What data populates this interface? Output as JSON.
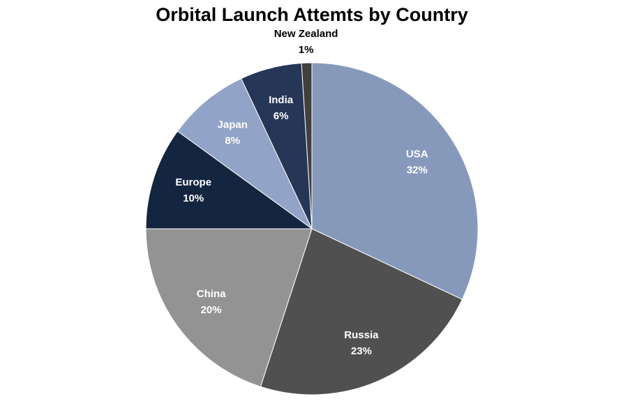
{
  "chart_data": {
    "type": "pie",
    "title": "Orbital Launch Attemts by Country",
    "categories": [
      "USA",
      "Russia",
      "China",
      "Europe",
      "Japan",
      "India",
      "New Zealand"
    ],
    "values": [
      32,
      23,
      20,
      10,
      8,
      6,
      1
    ],
    "value_labels": [
      "32%",
      "23%",
      "20%",
      "10%",
      "8%",
      "6%",
      "1%"
    ],
    "colors": [
      "#8799bb",
      "#505050",
      "#939393",
      "#142540",
      "#91a3c6",
      "#253657",
      "#404040"
    ]
  }
}
